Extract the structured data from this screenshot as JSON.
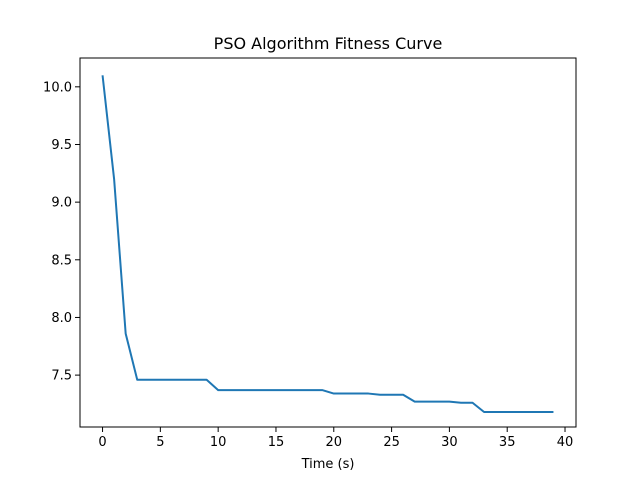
{
  "chart_data": {
    "type": "line",
    "title": "PSO Algorithm Fitness Curve",
    "xlabel": "Time (s)",
    "ylabel": "",
    "xlim": [
      -1.95,
      40.95
    ],
    "ylim": [
      7.05,
      10.25
    ],
    "x_ticks": [
      0,
      5,
      10,
      15,
      20,
      25,
      30,
      35,
      40
    ],
    "y_ticks": [
      7.5,
      8.0,
      8.5,
      9.0,
      9.5,
      10.0
    ],
    "grid": false,
    "colors": {
      "line": "#1f77b4",
      "axes": "#000000"
    },
    "series": [
      {
        "x": [
          0,
          1,
          2,
          3,
          4,
          5,
          6,
          7,
          8,
          9,
          10,
          11,
          12,
          13,
          14,
          15,
          16,
          17,
          18,
          19,
          20,
          21,
          22,
          23,
          24,
          25,
          26,
          27,
          28,
          29,
          30,
          31,
          32,
          33,
          34,
          35,
          36,
          37,
          38,
          39
        ],
        "values": [
          10.1,
          9.2,
          7.86,
          7.46,
          7.46,
          7.46,
          7.46,
          7.46,
          7.46,
          7.46,
          7.37,
          7.37,
          7.37,
          7.37,
          7.37,
          7.37,
          7.37,
          7.37,
          7.37,
          7.37,
          7.34,
          7.34,
          7.34,
          7.34,
          7.33,
          7.33,
          7.33,
          7.27,
          7.27,
          7.27,
          7.27,
          7.26,
          7.26,
          7.18,
          7.18,
          7.18,
          7.18,
          7.18,
          7.18,
          7.18
        ]
      }
    ]
  }
}
